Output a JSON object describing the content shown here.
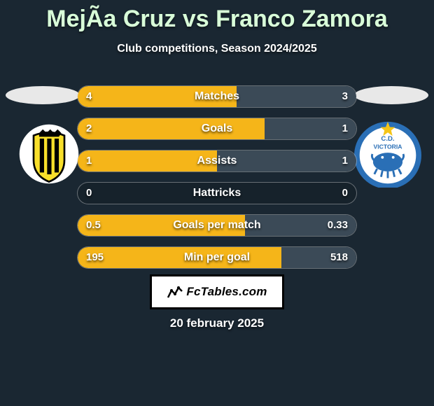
{
  "title": "MejÃ­a Cruz vs Franco Zamora",
  "subtitle": "Club competitions, Season 2024/2025",
  "date": "20 february 2025",
  "brand": "FcTables.com",
  "colors": {
    "bg": "#1a2732",
    "title": "#d9ffd9",
    "fill_left": "#f5b519",
    "fill_right": "#3b4a57",
    "ellipse": "#e8e8e8"
  },
  "stats": [
    {
      "label": "Matches",
      "l": "4",
      "r": "3",
      "lw": 57,
      "rw": 43
    },
    {
      "label": "Goals",
      "l": "2",
      "r": "1",
      "lw": 67,
      "rw": 33
    },
    {
      "label": "Assists",
      "l": "1",
      "r": "1",
      "lw": 50,
      "rw": 50
    },
    {
      "label": "Hattricks",
      "l": "0",
      "r": "0",
      "lw": 0,
      "rw": 0
    },
    {
      "label": "Goals per match",
      "l": "0.5",
      "r": "0.33",
      "lw": 60,
      "rw": 40
    },
    {
      "label": "Min per goal",
      "l": "195",
      "r": "518",
      "lw": 73,
      "rw": 27
    }
  ],
  "badges": {
    "left": {
      "bg": "#f8df2a",
      "stripe1": "#000000",
      "stripe2": "#000000",
      "crown": "#000000"
    },
    "right": {
      "ring": "#2a6fb6",
      "inner": "#ffffff",
      "star": "#f5c518",
      "text": "C.D.",
      "text2": "VICTORIA",
      "crab": "#2a6fb6"
    }
  }
}
